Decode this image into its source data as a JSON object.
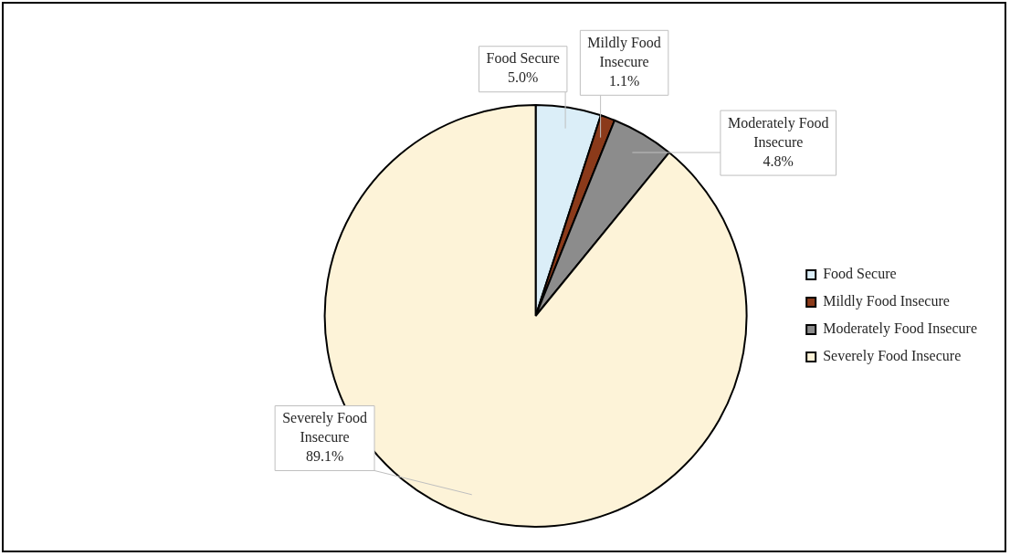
{
  "chart_data": {
    "type": "pie",
    "categories": [
      "Food Secure",
      "Mildly Food Insecure",
      "Moderately Food Insecure",
      "Severely Food Insecure"
    ],
    "values": [
      5.0,
      1.1,
      4.8,
      89.1
    ],
    "value_labels": [
      "5.0%",
      "1.1%",
      "4.8%",
      "89.1%"
    ],
    "colors": [
      "#dbeef8",
      "#8b3a1a",
      "#8c8c8c",
      "#fdf3d8"
    ],
    "legend": "right"
  }
}
